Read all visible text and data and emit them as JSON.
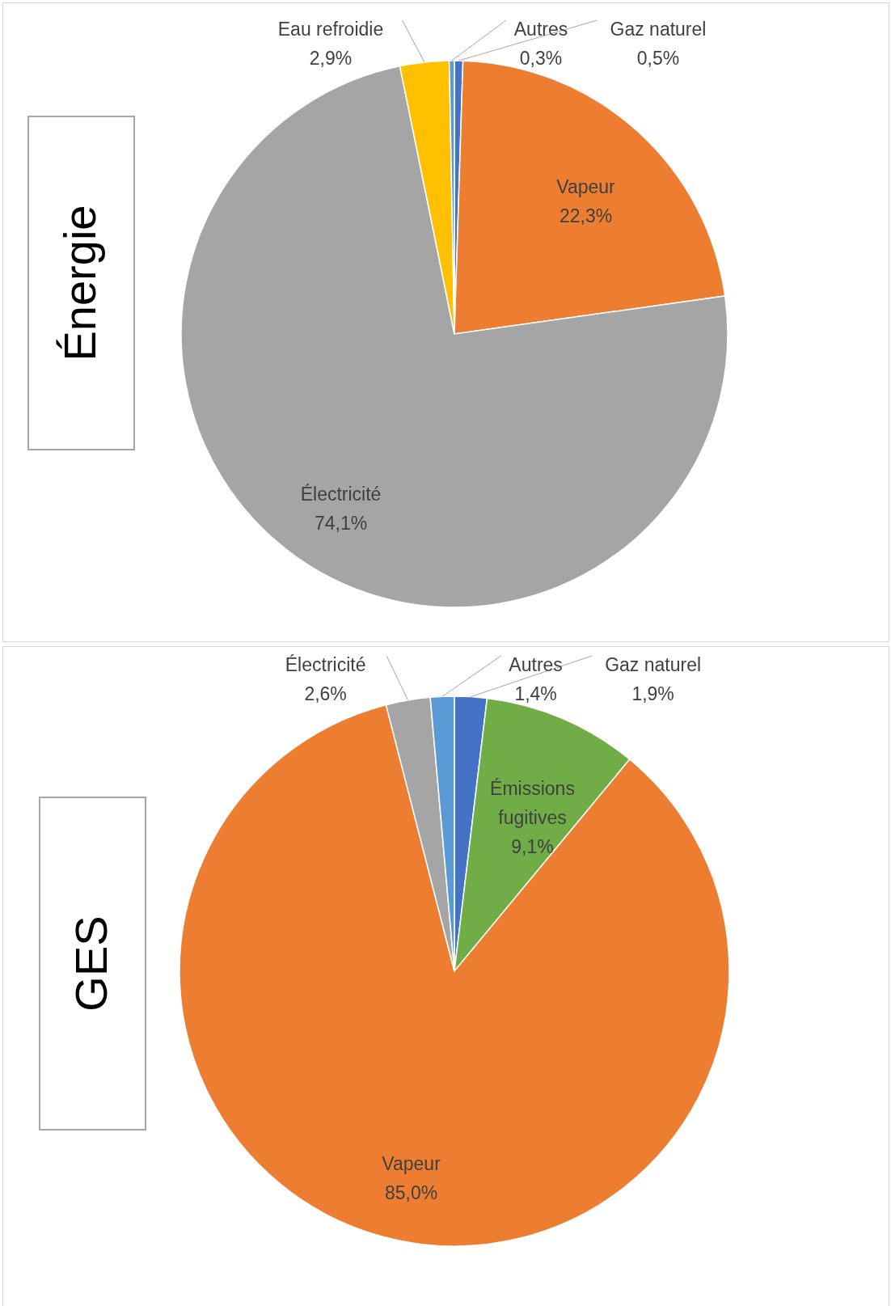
{
  "chart_data": [
    {
      "type": "pie",
      "title": "Énergie",
      "categories": [
        "Gaz naturel",
        "Vapeur",
        "Électricité",
        "Eau refroidie",
        "Autres"
      ],
      "values": [
        0.5,
        22.3,
        74.1,
        2.9,
        0.3
      ],
      "colors": [
        "#4472c4",
        "#ed7d31",
        "#a5a5a5",
        "#ffc000",
        "#5b9bd5"
      ],
      "value_labels": [
        "0,5%",
        "22,3%",
        "74,1%",
        "2,9%",
        "0,3%"
      ]
    },
    {
      "type": "pie",
      "title": "GES",
      "categories": [
        "Gaz naturel",
        "Émissions\nfugitives",
        "Vapeur",
        "Électricité",
        "Autres"
      ],
      "values": [
        1.9,
        9.1,
        85.0,
        2.6,
        1.4
      ],
      "colors": [
        "#4472c4",
        "#70ad47",
        "#ed7d31",
        "#a5a5a5",
        "#5b9bd5"
      ],
      "value_labels": [
        "1,9%",
        "9,1%",
        "85,0%",
        "2,6%",
        "1,4%"
      ]
    }
  ]
}
